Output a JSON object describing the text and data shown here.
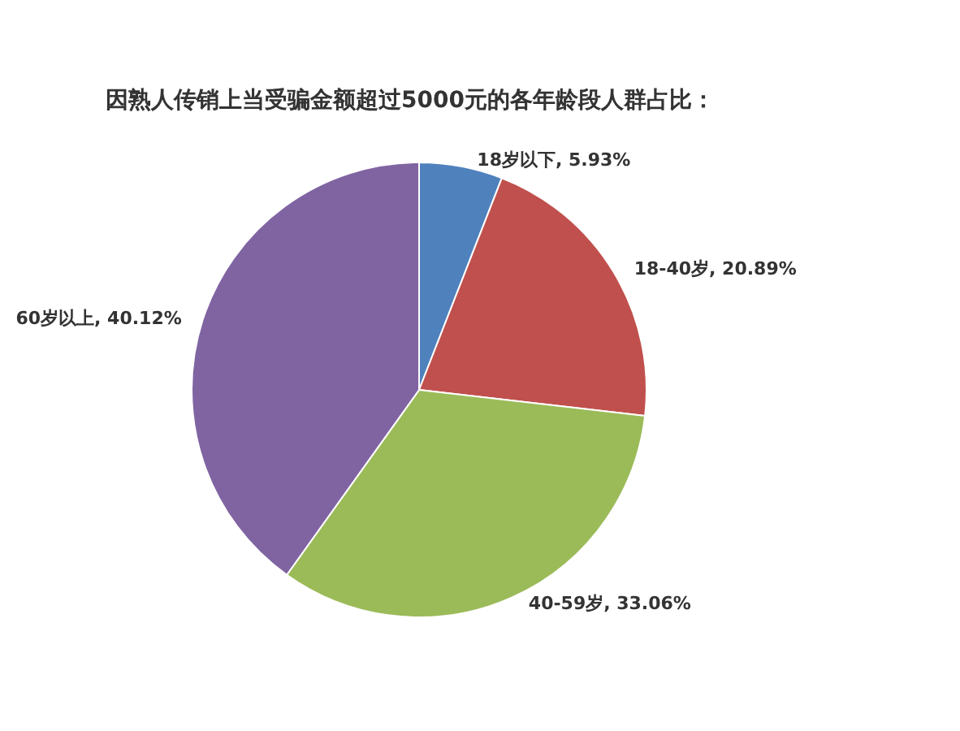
{
  "chart_data": {
    "type": "pie",
    "title": "因熟人传销上当受骗金额超过5000元的各年龄段人群占比：",
    "categories": [
      "18岁以下",
      "18-40岁",
      "40-59岁",
      "60岁以上"
    ],
    "values": [
      5.93,
      20.89,
      33.06,
      40.12
    ],
    "colors": [
      "#4f81bd",
      "#c0504d",
      "#9bbb59",
      "#8064a2"
    ],
    "value_labels": [
      "5.93%",
      "20.89%",
      "33.06%",
      "40.12%"
    ]
  }
}
